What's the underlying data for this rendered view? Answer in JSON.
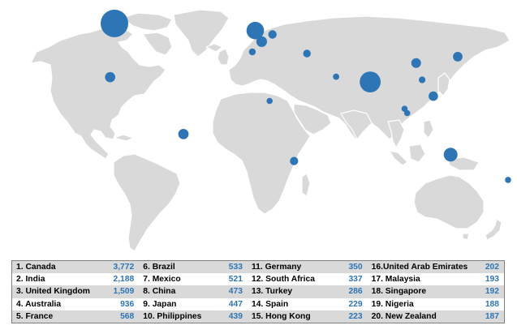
{
  "map": {
    "colors": {
      "land": "#d9d9d9",
      "bubble": "#2e75b6",
      "value_text": "#2e75b6",
      "row_shade": "#d9d9d9"
    },
    "bubbles": [
      {
        "name": "Canada",
        "lat": 58,
        "lon": -100,
        "value": 3772
      },
      {
        "name": "India",
        "lat": 21,
        "lon": 78,
        "value": 2188
      },
      {
        "name": "United Kingdom",
        "lat": 53.5,
        "lon": -2,
        "value": 1509
      },
      {
        "name": "Australia",
        "lat": -25,
        "lon": 134,
        "value": 936
      },
      {
        "name": "France",
        "lat": 46.5,
        "lon": 2.5,
        "value": 568
      },
      {
        "name": "Brazil",
        "lat": -12,
        "lon": -52,
        "value": 533
      },
      {
        "name": "Mexico",
        "lat": 24,
        "lon": -103,
        "value": 521
      },
      {
        "name": "China",
        "lat": 33,
        "lon": 110,
        "value": 473
      },
      {
        "name": "Japan",
        "lat": 37,
        "lon": 139,
        "value": 447
      },
      {
        "name": "Philippines",
        "lat": 12,
        "lon": 122,
        "value": 439
      },
      {
        "name": "Germany",
        "lat": 51,
        "lon": 10,
        "value": 350
      },
      {
        "name": "South Africa",
        "lat": -29,
        "lon": 25,
        "value": 337
      },
      {
        "name": "Turkey",
        "lat": 39,
        "lon": 34,
        "value": 286
      },
      {
        "name": "Spain",
        "lat": 40,
        "lon": -4,
        "value": 229
      },
      {
        "name": "Hong Kong",
        "lat": 22.3,
        "lon": 114.2,
        "value": 223
      },
      {
        "name": "United Arab Emirates",
        "lat": 24.3,
        "lon": 54.3,
        "value": 202
      },
      {
        "name": "Malaysia",
        "lat": 4,
        "lon": 102,
        "value": 193
      },
      {
        "name": "Singapore",
        "lat": 1.3,
        "lon": 103.8,
        "value": 192
      },
      {
        "name": "Nigeria",
        "lat": 9,
        "lon": 8,
        "value": 188
      },
      {
        "name": "New Zealand",
        "lat": -41,
        "lon": 174,
        "value": 187
      }
    ]
  },
  "legend": {
    "rows": [
      [
        {
          "label": "1. Canada",
          "value": "3,772"
        },
        {
          "label": "6. Brazil",
          "value": "533"
        },
        {
          "label": "11. Germany",
          "value": "350"
        },
        {
          "label": "16.United Arab Emirates",
          "value": "202"
        }
      ],
      [
        {
          "label": "2. India",
          "value": "2,188"
        },
        {
          "label": "7. Mexico",
          "value": "521"
        },
        {
          "label": "12. South Africa",
          "value": "337"
        },
        {
          "label": "17. Malaysia",
          "value": "193"
        }
      ],
      [
        {
          "label": "3. United Kingdom",
          "value": "1,509"
        },
        {
          "label": "8. China",
          "value": "473"
        },
        {
          "label": "13. Turkey",
          "value": "286"
        },
        {
          "label": "18. Singapore",
          "value": "192"
        }
      ],
      [
        {
          "label": "4. Australia",
          "value": "936"
        },
        {
          "label": "9. Japan",
          "value": "447"
        },
        {
          "label": "14. Spain",
          "value": "229"
        },
        {
          "label": "19. Nigeria",
          "value": "188"
        }
      ],
      [
        {
          "label": "5. France",
          "value": "568"
        },
        {
          "label": "10. Philippines",
          "value": "439"
        },
        {
          "label": "15. Hong Kong",
          "value": "223"
        },
        {
          "label": "20. New Zealand",
          "value": "187"
        }
      ]
    ]
  }
}
